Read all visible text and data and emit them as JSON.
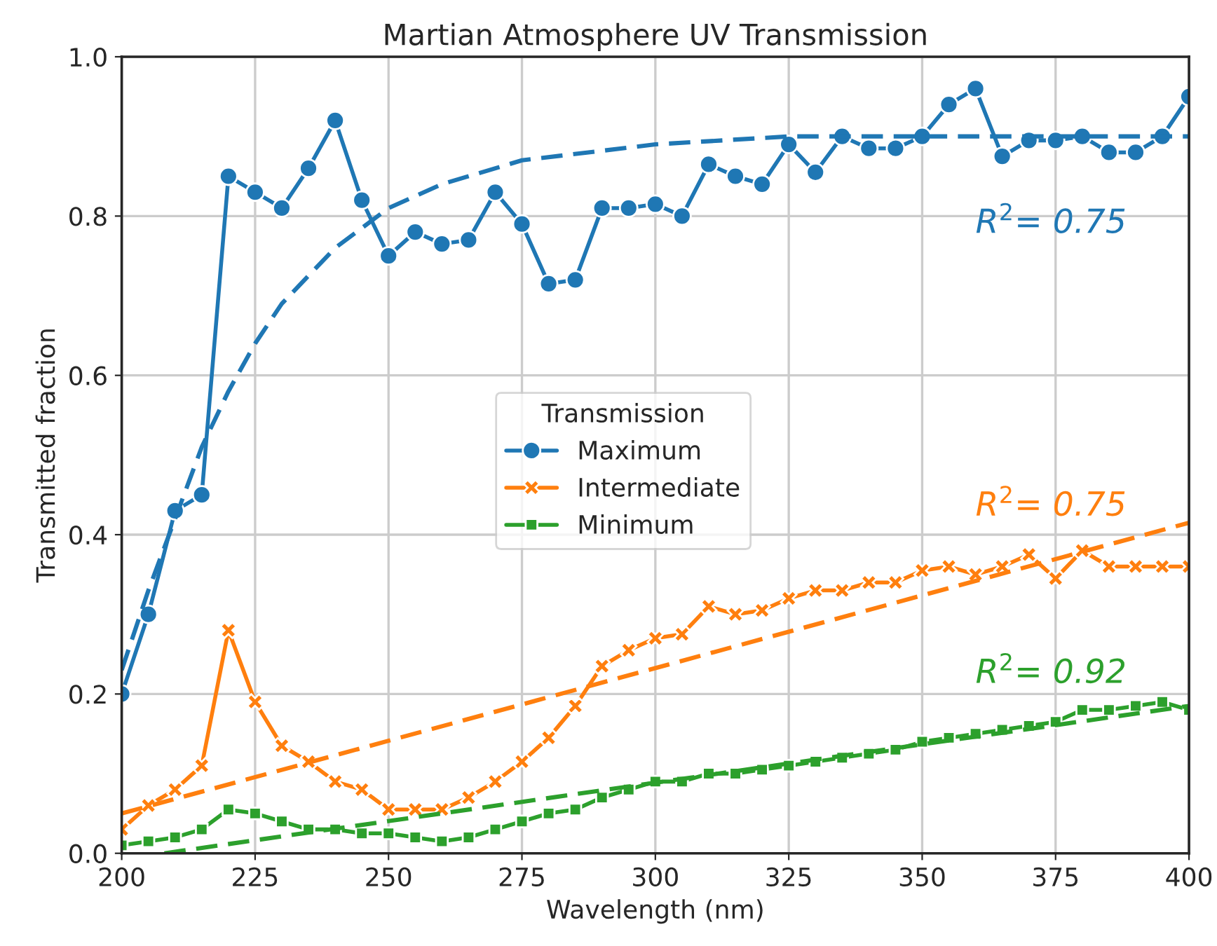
{
  "chart_data": {
    "type": "line",
    "title": "Martian Atmosphere UV Transmission",
    "xlabel": "Wavelength (nm)",
    "ylabel": "Transmitted fraction",
    "legend_title": "Transmission",
    "x": [
      200,
      205,
      210,
      215,
      220,
      225,
      230,
      235,
      240,
      245,
      250,
      255,
      260,
      265,
      270,
      275,
      280,
      285,
      290,
      295,
      300,
      305,
      310,
      315,
      320,
      325,
      330,
      335,
      340,
      345,
      350,
      355,
      360,
      365,
      370,
      375,
      380,
      385,
      390,
      395,
      400
    ],
    "series": [
      {
        "name": "Maximum",
        "color": "#1f77b4",
        "marker": "circle",
        "values": [
          0.2,
          0.3,
          0.43,
          0.45,
          0.85,
          0.83,
          0.81,
          0.86,
          0.92,
          0.82,
          0.75,
          0.78,
          0.765,
          0.77,
          0.83,
          0.79,
          0.715,
          0.72,
          0.81,
          0.81,
          0.815,
          0.8,
          0.865,
          0.85,
          0.84,
          0.89,
          0.855,
          0.9,
          0.885,
          0.885,
          0.9,
          0.94,
          0.96,
          0.875,
          0.895,
          0.895,
          0.9,
          0.88,
          0.88,
          0.9,
          0.95
        ]
      },
      {
        "name": "Intermediate",
        "color": "#ff7f0e",
        "marker": "cross",
        "values": [
          0.03,
          0.06,
          0.08,
          0.11,
          0.28,
          0.19,
          0.135,
          0.115,
          0.09,
          0.08,
          0.055,
          0.055,
          0.055,
          0.07,
          0.09,
          0.115,
          0.145,
          0.185,
          0.235,
          0.255,
          0.27,
          0.275,
          0.31,
          0.3,
          0.305,
          0.32,
          0.33,
          0.33,
          0.34,
          0.34,
          0.355,
          0.36,
          0.35,
          0.36,
          0.375,
          0.345,
          0.38,
          0.36,
          0.36,
          0.36,
          0.36
        ]
      },
      {
        "name": "Minimum",
        "color": "#2ca02c",
        "marker": "square",
        "values": [
          0.01,
          0.015,
          0.02,
          0.03,
          0.055,
          0.05,
          0.04,
          0.03,
          0.03,
          0.025,
          0.025,
          0.02,
          0.015,
          0.02,
          0.03,
          0.04,
          0.05,
          0.055,
          0.07,
          0.08,
          0.09,
          0.09,
          0.1,
          0.1,
          0.105,
          0.11,
          0.115,
          0.12,
          0.125,
          0.13,
          0.14,
          0.145,
          0.15,
          0.155,
          0.16,
          0.165,
          0.18,
          0.18,
          0.185,
          0.19,
          0.18
        ]
      },
      {
        "type": "line",
        "color": "#1f77b4",
        "line_style": "dashed",
        "marker": "none",
        "x": [
          200,
          205,
          210,
          215,
          220,
          225,
          230,
          240,
          250,
          260,
          275,
          300,
          325,
          350,
          400
        ],
        "values": [
          0.23,
          0.33,
          0.42,
          0.51,
          0.58,
          0.64,
          0.69,
          0.76,
          0.81,
          0.84,
          0.87,
          0.89,
          0.9,
          0.9,
          0.9
        ]
      },
      {
        "type": "line",
        "color": "#ff7f0e",
        "line_style": "dashed",
        "marker": "none",
        "x": [
          200,
          400
        ],
        "values": [
          0.05,
          0.415
        ]
      },
      {
        "type": "line",
        "color": "#2ca02c",
        "line_style": "dashed",
        "marker": "none",
        "x": [
          208,
          400
        ],
        "values": [
          0.0,
          0.185
        ]
      }
    ],
    "annotations": [
      "R$^{2}$= 0.75",
      "R$^{2}$= 0.75",
      "R$^{2}$= 0.92"
    ],
    "xlim": [
      200,
      400
    ],
    "xticks": [
      200,
      225,
      250,
      275,
      300,
      325,
      350,
      375,
      400
    ],
    "ylim": [
      0,
      1.0
    ],
    "yticks": [
      {
        "value": 0,
        "label": "0.0"
      },
      0.2,
      0.4,
      0.6,
      0.8,
      {
        "value": 1,
        "label": "1.0"
      }
    ],
    "grid": true,
    "legend": "center"
  }
}
